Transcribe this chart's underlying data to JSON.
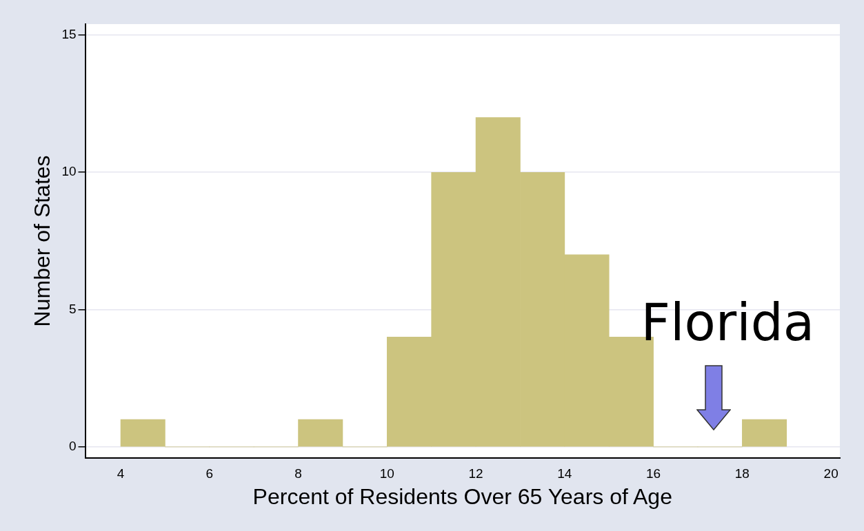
{
  "chart_data": {
    "type": "histogram",
    "xlabel": "Percent of Residents Over 65 Years of Age",
    "ylabel": "Number of States",
    "bins": [
      4,
      5,
      6,
      7,
      8,
      9,
      10,
      11,
      12,
      13,
      14,
      15,
      16,
      17,
      18,
      19
    ],
    "values": [
      1,
      0,
      0,
      0,
      1,
      0,
      4,
      10,
      12,
      10,
      7,
      4,
      0,
      0,
      1
    ],
    "color": "#ccc47f",
    "xlim": [
      3.2,
      20.2
    ],
    "xticks": [
      4,
      6,
      8,
      10,
      12,
      14,
      16,
      18,
      20
    ],
    "ylim": [
      -0.4,
      15.4
    ],
    "yticks": [
      0,
      5,
      10,
      15
    ],
    "grid": "y",
    "legend": false,
    "annotations": [
      "Florida"
    ]
  }
}
